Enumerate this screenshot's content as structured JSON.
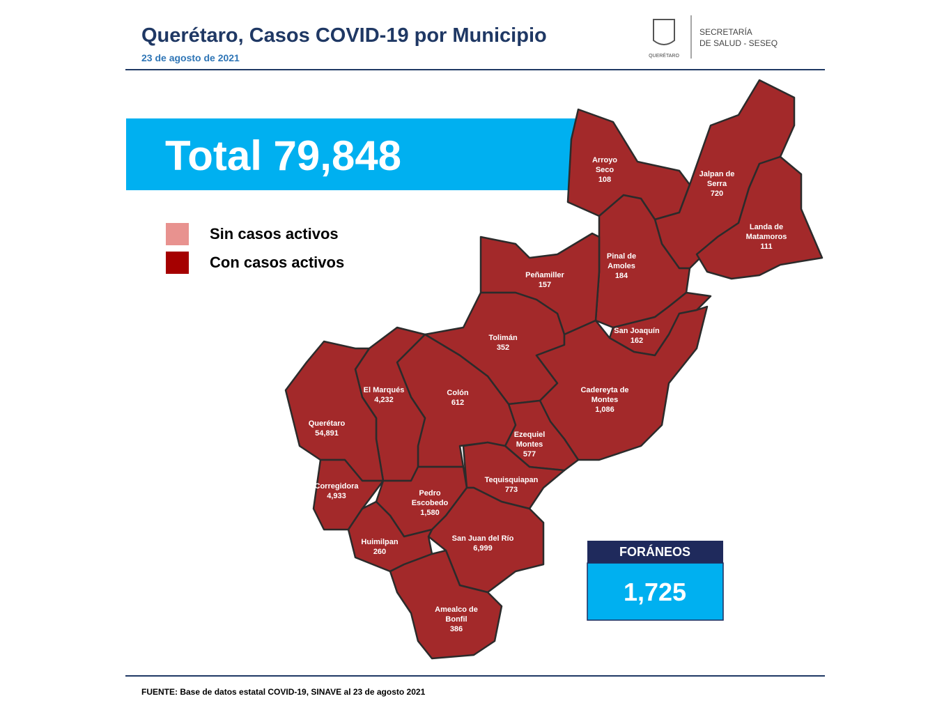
{
  "header": {
    "title": "Querétaro, Casos COVID-19 por Municipio",
    "date": "23 de agosto de 2021",
    "logo_text": "QUERÉTARO",
    "agency_lines": [
      "SECRETARÍA",
      "DE SALUD - SESEQ"
    ]
  },
  "total": "Total 79,848",
  "legend": [
    {
      "label": "Sin casos activos",
      "color": "#e8928f"
    },
    {
      "label": "Con casos activos",
      "color": "#a50000"
    }
  ],
  "municipalities": [
    {
      "name_lines": [
        "Arroyo",
        "Seco"
      ],
      "cases": "108"
    },
    {
      "name_lines": [
        "Jalpan de",
        "Serra"
      ],
      "cases": "720"
    },
    {
      "name_lines": [
        "Landa de",
        "Matamoros"
      ],
      "cases": "111"
    },
    {
      "name_lines": [
        "Pinal de",
        "Amoles"
      ],
      "cases": "184"
    },
    {
      "name_lines": [
        "Peñamiller"
      ],
      "cases": "157"
    },
    {
      "name_lines": [
        "San Joaquín"
      ],
      "cases": "162"
    },
    {
      "name_lines": [
        "Tolimán"
      ],
      "cases": "352"
    },
    {
      "name_lines": [
        "Cadereyta de",
        "Montes"
      ],
      "cases": "1,086"
    },
    {
      "name_lines": [
        "El  Marqués"
      ],
      "cases": "4,232"
    },
    {
      "name_lines": [
        "Colón"
      ],
      "cases": "612"
    },
    {
      "name_lines": [
        "Querétaro"
      ],
      "cases": "54,891"
    },
    {
      "name_lines": [
        "Ezequiel",
        "Montes"
      ],
      "cases": "577"
    },
    {
      "name_lines": [
        "Corregidora"
      ],
      "cases": "4,933"
    },
    {
      "name_lines": [
        "Tequisquiapan"
      ],
      "cases": "773"
    },
    {
      "name_lines": [
        "Pedro",
        "Escobedo"
      ],
      "cases": "1,580"
    },
    {
      "name_lines": [
        "Huimilpan"
      ],
      "cases": "260"
    },
    {
      "name_lines": [
        "San Juan del Río"
      ],
      "cases": "6,999"
    },
    {
      "name_lines": [
        "Amealco de",
        "Bonfil"
      ],
      "cases": "386"
    }
  ],
  "foraneos": {
    "title": "FORÁNEOS",
    "value": "1,725"
  },
  "footer": "FUENTE:  Base de datos estatal COVID-19,  SINAVE  al 23 de agosto 2021"
}
